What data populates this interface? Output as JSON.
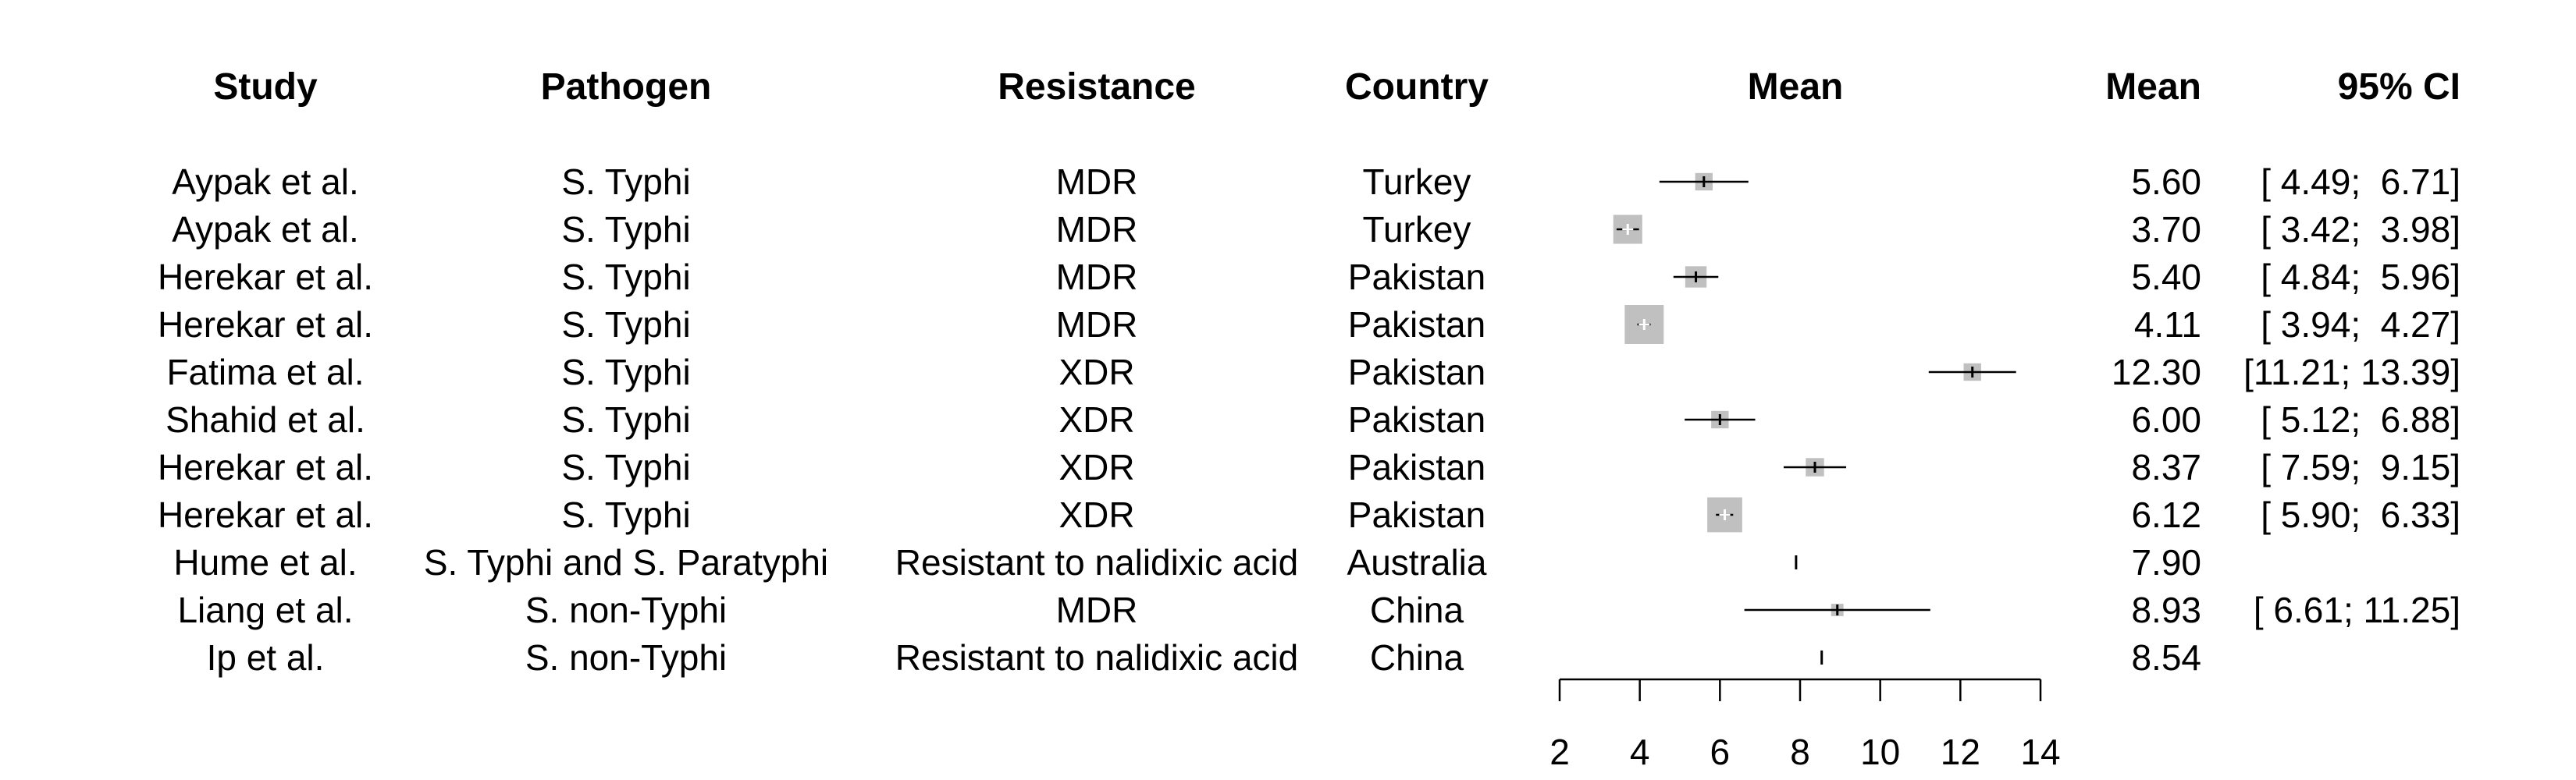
{
  "headers": {
    "study": "Study",
    "pathogen": "Pathogen",
    "resistance": "Resistance",
    "country": "Country",
    "mean_plot": "Mean",
    "mean": "Mean",
    "ci": "95% CI"
  },
  "rows": [
    {
      "study": "Aypak et al.",
      "pathogen": "S. Typhi",
      "resistance": "MDR",
      "country": "Turkey",
      "mean": "5.60",
      "ci": "[ 4.49;  6.71]"
    },
    {
      "study": "Aypak et al.",
      "pathogen": "S. Typhi",
      "resistance": "MDR",
      "country": "Turkey",
      "mean": "3.70",
      "ci": "[ 3.42;  3.98]"
    },
    {
      "study": "Herekar et al.",
      "pathogen": "S. Typhi",
      "resistance": "MDR",
      "country": "Pakistan",
      "mean": "5.40",
      "ci": "[ 4.84;  5.96]"
    },
    {
      "study": "Herekar et al.",
      "pathogen": "S. Typhi",
      "resistance": "MDR",
      "country": "Pakistan",
      "mean": "4.11",
      "ci": "[ 3.94;  4.27]"
    },
    {
      "study": "Fatima et al.",
      "pathogen": "S. Typhi",
      "resistance": "XDR",
      "country": "Pakistan",
      "mean": "12.30",
      "ci": "[11.21; 13.39]"
    },
    {
      "study": "Shahid et al.",
      "pathogen": "S. Typhi",
      "resistance": "XDR",
      "country": "Pakistan",
      "mean": "6.00",
      "ci": "[ 5.12;  6.88]"
    },
    {
      "study": "Herekar et al.",
      "pathogen": "S. Typhi",
      "resistance": "XDR",
      "country": "Pakistan",
      "mean": "8.37",
      "ci": "[ 7.59;  9.15]"
    },
    {
      "study": "Herekar et al.",
      "pathogen": "S. Typhi",
      "resistance": "XDR",
      "country": "Pakistan",
      "mean": "6.12",
      "ci": "[ 5.90;  6.33]"
    },
    {
      "study": "Hume et al.",
      "pathogen": "S. Typhi and S. Paratyphi",
      "resistance": "Resistant to nalidixic acid",
      "country": "Australia",
      "mean": "7.90",
      "ci": ""
    },
    {
      "study": "Liang et al.",
      "pathogen": "S. non-Typhi",
      "resistance": "MDR",
      "country": "China",
      "mean": "8.93",
      "ci": "[ 6.61; 11.25]"
    },
    {
      "study": "Ip et al.",
      "pathogen": "S. non-Typhi",
      "resistance": "Resistant to nalidixic acid",
      "country": "China",
      "mean": "8.54",
      "ci": ""
    }
  ],
  "chart_data": {
    "type": "forest",
    "xlim": [
      2,
      14
    ],
    "xticks": [
      "2",
      "4",
      "6",
      "8",
      "10",
      "12",
      "14"
    ],
    "grid": false,
    "points": [
      {
        "mean": 5.6,
        "lower": 4.49,
        "upper": 6.71,
        "weight": 0.2
      },
      {
        "mean": 3.7,
        "lower": 3.42,
        "upper": 3.98,
        "weight": 0.55
      },
      {
        "mean": 5.4,
        "lower": 4.84,
        "upper": 5.96,
        "weight": 0.3
      },
      {
        "mean": 4.11,
        "lower": 3.94,
        "upper": 4.27,
        "weight": 1.0
      },
      {
        "mean": 12.3,
        "lower": 11.21,
        "upper": 13.39,
        "weight": 0.2
      },
      {
        "mean": 6.0,
        "lower": 5.12,
        "upper": 6.88,
        "weight": 0.2
      },
      {
        "mean": 8.37,
        "lower": 7.59,
        "upper": 9.15,
        "weight": 0.22
      },
      {
        "mean": 6.12,
        "lower": 5.9,
        "upper": 6.33,
        "weight": 0.8
      },
      {
        "mean": 7.9,
        "lower": null,
        "upper": null,
        "weight": 0.0
      },
      {
        "mean": 8.93,
        "lower": 6.61,
        "upper": 11.25,
        "weight": 0.1
      },
      {
        "mean": 8.54,
        "lower": null,
        "upper": null,
        "weight": 0.0
      }
    ],
    "colors": {
      "box": "#c0c0c0",
      "line": "#000000",
      "inner_mark": "#ffffff"
    }
  }
}
